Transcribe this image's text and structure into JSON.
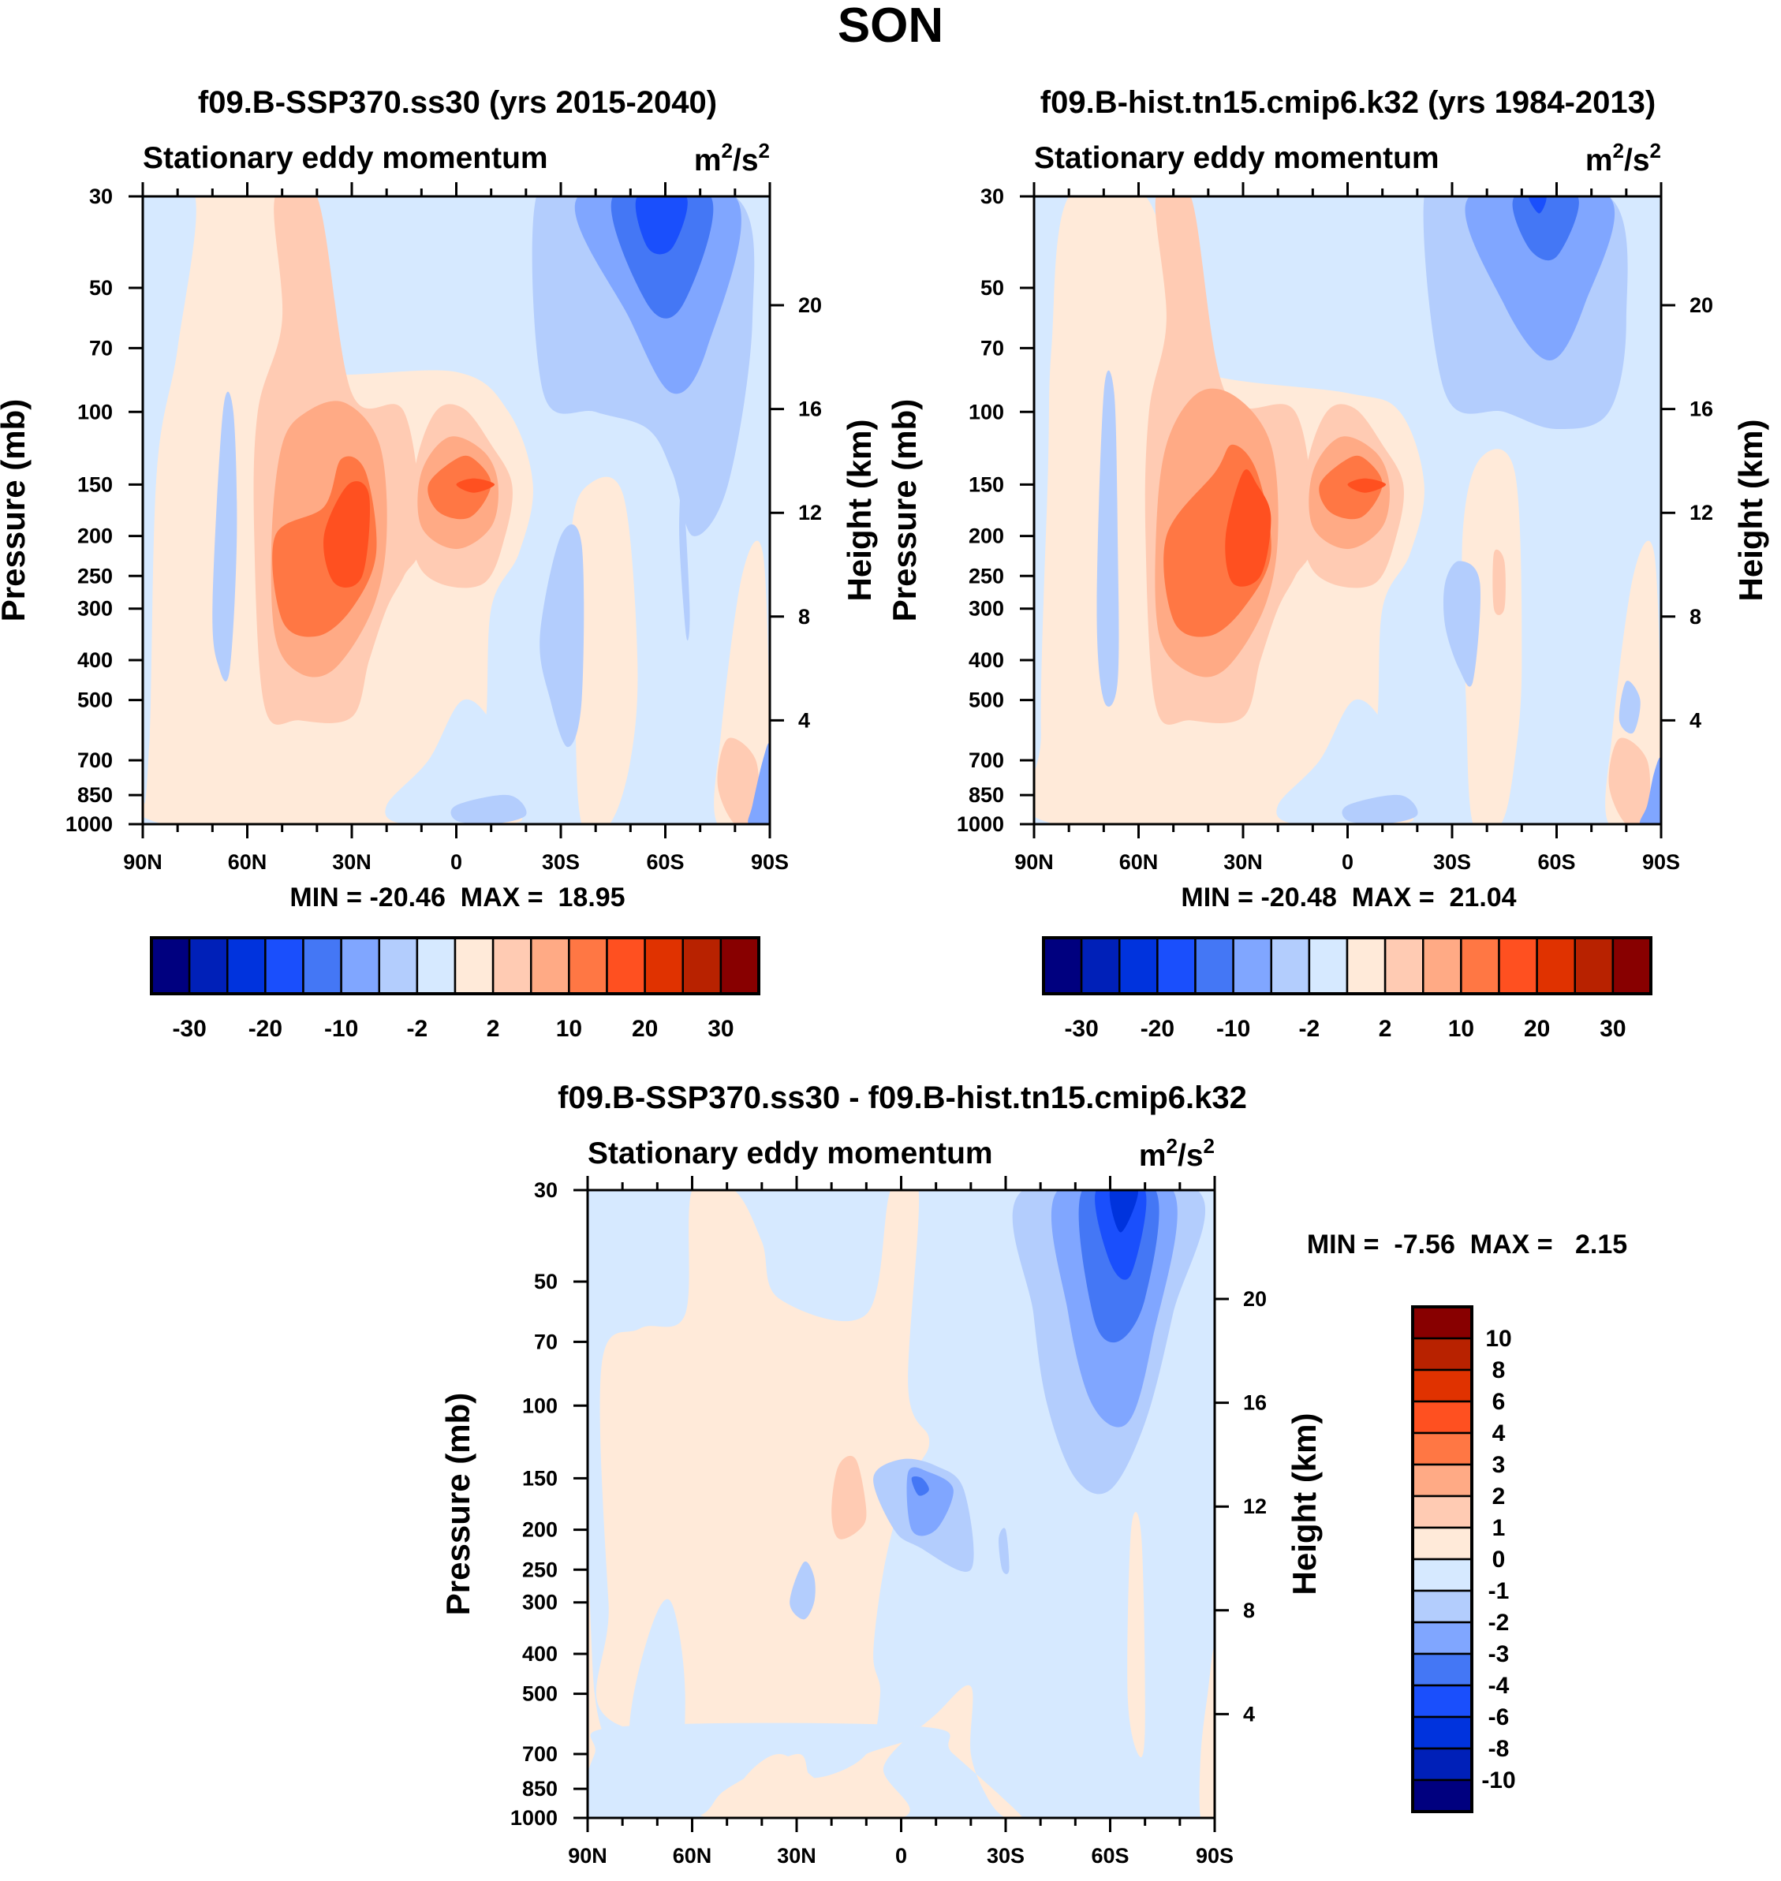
{
  "figure_title": "SON",
  "chart_data": [
    {
      "type": "heatmap",
      "subtype": "filled-contour latitude-pressure cross-section",
      "title": "f09.B-SSP370.ss30 (yrs 2015-2040)",
      "subtitle": "Stationary eddy momentum",
      "units": [
        "m",
        "2",
        "/s",
        "2"
      ],
      "xlabel": "",
      "ylabel": "Pressure (mb)",
      "ylabel_right": "Height (km)",
      "x_ticks": [
        "90N",
        "60N",
        "30N",
        "0",
        "30S",
        "60S",
        "90S"
      ],
      "y_ticks": [
        "30",
        "50",
        "70",
        "100",
        "150",
        "200",
        "250",
        "300",
        "400",
        "500",
        "700",
        "850",
        "1000"
      ],
      "y_right_ticks": [
        "4",
        "8",
        "12",
        "16",
        "20"
      ],
      "xlim": [
        90,
        -90
      ],
      "ylim": [
        1000,
        30
      ],
      "min_max_label": "MIN = -20.46  MAX =  18.95",
      "min": -20.46,
      "max": 18.95,
      "colorbar": {
        "orientation": "horizontal",
        "labels": [
          "-30",
          "-20",
          "-10",
          "-2",
          "2",
          "10",
          "20",
          "30"
        ],
        "colors": [
          "#00007f",
          "#0020b8",
          "#0033dd",
          "#1a4ffc",
          "#4477f5",
          "#80a6ff",
          "#b3cdfd",
          "#d6e9ff",
          "#ffead9",
          "#ffcbb3",
          "#ffaa85",
          "#ff7744",
          "#ff5020",
          "#e03200",
          "#b82200",
          "#880000"
        ]
      },
      "features": [
        {
          "name": "NH subtropical positive max",
          "lat": 32,
          "pressure": 200,
          "level": 15
        },
        {
          "name": "equatorial positive max",
          "lat": -5,
          "pressure": 150,
          "level": 15
        },
        {
          "name": "SH stratospheric negative min",
          "lat": -60,
          "pressure": 30,
          "level": -15
        }
      ]
    },
    {
      "type": "heatmap",
      "subtype": "filled-contour latitude-pressure cross-section",
      "title": "f09.B-hist.tn15.cmip6.k32 (yrs 1984-2013)",
      "subtitle": "Stationary eddy momentum",
      "units": [
        "m",
        "2",
        "/s",
        "2"
      ],
      "xlabel": "",
      "ylabel": "Pressure (mb)",
      "ylabel_right": "Height (km)",
      "x_ticks": [
        "90N",
        "60N",
        "30N",
        "0",
        "30S",
        "60S",
        "90S"
      ],
      "y_ticks": [
        "30",
        "50",
        "70",
        "100",
        "150",
        "200",
        "250",
        "300",
        "400",
        "500",
        "700",
        "850",
        "1000"
      ],
      "y_right_ticks": [
        "4",
        "8",
        "12",
        "16",
        "20"
      ],
      "xlim": [
        90,
        -90
      ],
      "ylim": [
        1000,
        30
      ],
      "min_max_label": "MIN = -20.48  MAX =  21.04",
      "min": -20.48,
      "max": 21.04,
      "colorbar": {
        "orientation": "horizontal",
        "labels": [
          "-30",
          "-20",
          "-10",
          "-2",
          "2",
          "10",
          "20",
          "30"
        ],
        "colors": [
          "#00007f",
          "#0020b8",
          "#0033dd",
          "#1a4ffc",
          "#4477f5",
          "#80a6ff",
          "#b3cdfd",
          "#d6e9ff",
          "#ffead9",
          "#ffcbb3",
          "#ffaa85",
          "#ff7744",
          "#ff5020",
          "#e03200",
          "#b82200",
          "#880000"
        ]
      },
      "features": [
        {
          "name": "NH subtropical positive max",
          "lat": 32,
          "pressure": 200,
          "level": 15
        },
        {
          "name": "equatorial positive max",
          "lat": -5,
          "pressure": 150,
          "level": 15
        },
        {
          "name": "SH stratospheric negative min",
          "lat": -55,
          "pressure": 30,
          "level": -15
        }
      ]
    },
    {
      "type": "heatmap",
      "subtype": "filled-contour latitude-pressure cross-section (difference)",
      "title": "f09.B-SSP370.ss30 - f09.B-hist.tn15.cmip6.k32",
      "subtitle": "Stationary eddy momentum",
      "units": [
        "m",
        "2",
        "/s",
        "2"
      ],
      "xlabel": "",
      "ylabel": "Pressure (mb)",
      "ylabel_right": "Height (km)",
      "x_ticks": [
        "90N",
        "60N",
        "30N",
        "0",
        "30S",
        "60S",
        "90S"
      ],
      "y_ticks": [
        "30",
        "50",
        "70",
        "100",
        "150",
        "200",
        "250",
        "300",
        "400",
        "500",
        "700",
        "850",
        "1000"
      ],
      "y_right_ticks": [
        "4",
        "8",
        "12",
        "16",
        "20"
      ],
      "xlim": [
        90,
        -90
      ],
      "ylim": [
        1000,
        30
      ],
      "min_max_label": "MIN =  -7.56  MAX =   2.15",
      "min": -7.56,
      "max": 2.15,
      "colorbar": {
        "orientation": "vertical",
        "labels": [
          "10",
          "8",
          "6",
          "4",
          "3",
          "2",
          "1",
          "0",
          "-1",
          "-2",
          "-3",
          "-4",
          "-6",
          "-8",
          "-10"
        ],
        "colors": [
          "#880000",
          "#b82200",
          "#e03200",
          "#ff5020",
          "#ff7744",
          "#ffaa85",
          "#ffcbb3",
          "#ffead9",
          "#d6e9ff",
          "#b3cdfd",
          "#80a6ff",
          "#4477f5",
          "#1a4ffc",
          "#0033dd",
          "#0020b8",
          "#00007f"
        ]
      },
      "features": [
        {
          "name": "SH stratospheric negative min",
          "lat": -66,
          "pressure": 30,
          "level": -8
        },
        {
          "name": "equatorial negative",
          "lat": -5,
          "pressure": 155,
          "level": -4
        },
        {
          "name": "tropical positive",
          "lat": 15,
          "pressure": 155,
          "level": 2
        }
      ]
    }
  ]
}
